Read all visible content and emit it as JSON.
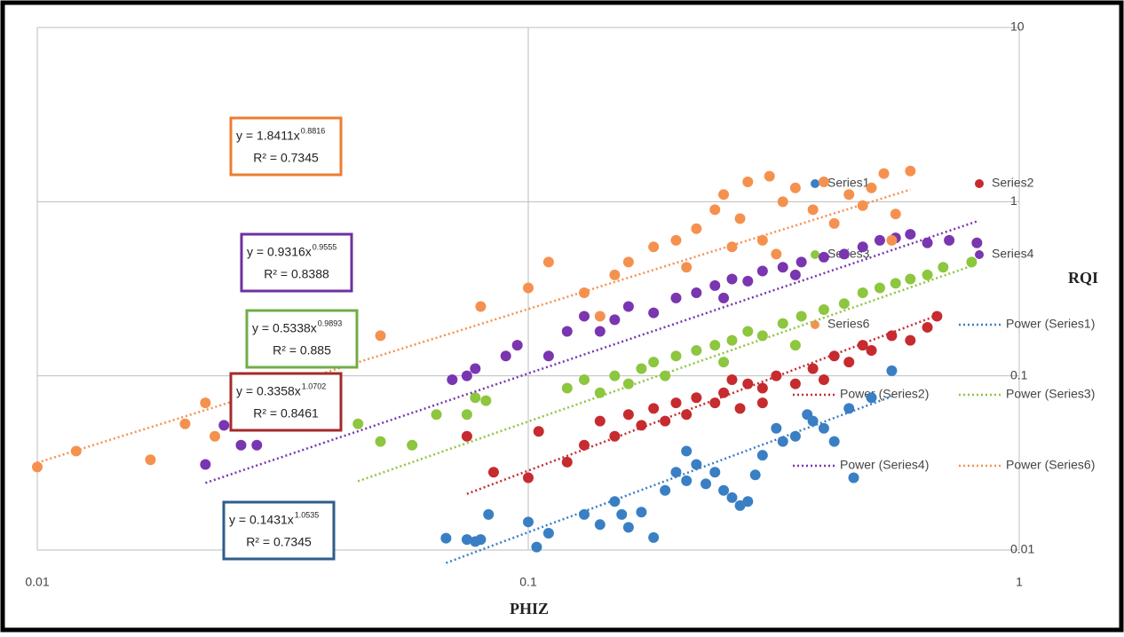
{
  "chart_data": {
    "type": "scatter",
    "x_label": "PHIZ",
    "y_label": "RQI",
    "log_x": true,
    "log_y": true,
    "grid": true,
    "xlim": [
      0.01,
      1
    ],
    "xticks": [
      0.01,
      0.1,
      1
    ],
    "ylim": [
      0.01,
      10
    ],
    "yticks": [
      0.01,
      0.1,
      1,
      10
    ],
    "series": [
      {
        "name": "Series1",
        "color": "#3a7fc4",
        "x": [
          0.068,
          0.075,
          0.078,
          0.08,
          0.083,
          0.1,
          0.104,
          0.11,
          0.13,
          0.14,
          0.15,
          0.155,
          0.16,
          0.17,
          0.18,
          0.19,
          0.2,
          0.21,
          0.22,
          0.23,
          0.25,
          0.26,
          0.27,
          0.28,
          0.29,
          0.3,
          0.32,
          0.33,
          0.35,
          0.37,
          0.4,
          0.42,
          0.45,
          0.46,
          0.5,
          0.55,
          0.21,
          0.24,
          0.38
        ],
        "values": [
          0.0117,
          0.0115,
          0.0112,
          0.0115,
          0.016,
          0.0145,
          0.0104,
          0.0125,
          0.016,
          0.014,
          0.019,
          0.016,
          0.0135,
          0.0165,
          0.0118,
          0.022,
          0.028,
          0.025,
          0.031,
          0.024,
          0.022,
          0.02,
          0.018,
          0.019,
          0.027,
          0.035,
          0.05,
          0.042,
          0.045,
          0.06,
          0.05,
          0.042,
          0.065,
          0.026,
          0.075,
          0.107,
          0.037,
          0.028,
          0.055
        ],
        "trendline": {
          "name": "Power (Series1)",
          "coefficient": 0.1431,
          "exponent": 1.0535,
          "equation_label": "y = 0.1431x",
          "r_squared_label": "R² = 0.7345",
          "box_color": "#2e5d8a"
        }
      },
      {
        "name": "Series2",
        "color": "#c62b2f",
        "x": [
          0.075,
          0.085,
          0.1,
          0.105,
          0.12,
          0.13,
          0.14,
          0.15,
          0.16,
          0.17,
          0.18,
          0.19,
          0.2,
          0.21,
          0.22,
          0.24,
          0.25,
          0.27,
          0.28,
          0.3,
          0.32,
          0.35,
          0.38,
          0.4,
          0.42,
          0.45,
          0.48,
          0.5,
          0.55,
          0.6,
          0.65,
          0.68,
          0.3,
          0.26
        ],
        "values": [
          0.045,
          0.028,
          0.026,
          0.048,
          0.032,
          0.04,
          0.055,
          0.045,
          0.06,
          0.052,
          0.065,
          0.055,
          0.07,
          0.06,
          0.075,
          0.07,
          0.08,
          0.065,
          0.09,
          0.085,
          0.1,
          0.09,
          0.11,
          0.095,
          0.13,
          0.12,
          0.15,
          0.14,
          0.17,
          0.16,
          0.19,
          0.22,
          0.07,
          0.095
        ],
        "trendline": {
          "name": "Power (Series2)",
          "coefficient": 0.3358,
          "exponent": 1.0702,
          "equation_label": "y = 0.3358x",
          "r_squared_label": "R² = 0.8461",
          "box_color": "#a52a2a"
        }
      },
      {
        "name": "Series3",
        "color": "#8dc63f",
        "x": [
          0.045,
          0.05,
          0.058,
          0.065,
          0.075,
          0.078,
          0.082,
          0.12,
          0.13,
          0.14,
          0.15,
          0.16,
          0.17,
          0.18,
          0.19,
          0.2,
          0.22,
          0.24,
          0.26,
          0.28,
          0.3,
          0.33,
          0.36,
          0.4,
          0.44,
          0.48,
          0.52,
          0.56,
          0.6,
          0.65,
          0.7,
          0.8,
          0.25,
          0.35
        ],
        "values": [
          0.053,
          0.042,
          0.04,
          0.06,
          0.06,
          0.075,
          0.072,
          0.085,
          0.095,
          0.08,
          0.1,
          0.09,
          0.11,
          0.12,
          0.1,
          0.13,
          0.14,
          0.15,
          0.16,
          0.18,
          0.17,
          0.2,
          0.22,
          0.24,
          0.26,
          0.3,
          0.32,
          0.34,
          0.36,
          0.38,
          0.42,
          0.45,
          0.12,
          0.15
        ],
        "trendline": {
          "name": "Power (Series3)",
          "coefficient": 0.5338,
          "exponent": 0.9893,
          "equation_label": "y = 0.5338x",
          "r_squared_label": "R² = 0.885",
          "box_color": "#70ad47"
        }
      },
      {
        "name": "Series4",
        "color": "#7a35b0",
        "x": [
          0.022,
          0.024,
          0.026,
          0.028,
          0.033,
          0.07,
          0.075,
          0.078,
          0.09,
          0.095,
          0.11,
          0.12,
          0.13,
          0.14,
          0.15,
          0.16,
          0.18,
          0.2,
          0.22,
          0.24,
          0.26,
          0.28,
          0.3,
          0.33,
          0.36,
          0.4,
          0.44,
          0.48,
          0.52,
          0.56,
          0.6,
          0.65,
          0.72,
          0.82,
          0.25,
          0.35
        ],
        "values": [
          0.031,
          0.052,
          0.04,
          0.04,
          0.057,
          0.095,
          0.1,
          0.11,
          0.13,
          0.15,
          0.13,
          0.18,
          0.22,
          0.18,
          0.21,
          0.25,
          0.23,
          0.28,
          0.3,
          0.33,
          0.36,
          0.35,
          0.4,
          0.42,
          0.45,
          0.48,
          0.5,
          0.55,
          0.6,
          0.62,
          0.65,
          0.58,
          0.6,
          0.58,
          0.28,
          0.38
        ],
        "trendline": {
          "name": "Power (Series4)",
          "coefficient": 0.9316,
          "exponent": 0.9555,
          "equation_label": "y = 0.9316x",
          "r_squared_label": "R² = 0.8388",
          "box_color": "#7030a0"
        }
      },
      {
        "name": "Series6",
        "color": "#f5914f",
        "x": [
          0.01,
          0.012,
          0.017,
          0.02,
          0.022,
          0.023,
          0.05,
          0.08,
          0.1,
          0.11,
          0.13,
          0.14,
          0.15,
          0.16,
          0.18,
          0.2,
          0.21,
          0.22,
          0.24,
          0.25,
          0.27,
          0.28,
          0.3,
          0.31,
          0.33,
          0.35,
          0.38,
          0.4,
          0.42,
          0.45,
          0.48,
          0.5,
          0.53,
          0.56,
          0.6,
          0.55,
          0.32,
          0.26
        ],
        "values": [
          0.03,
          0.037,
          0.033,
          0.053,
          0.07,
          0.045,
          0.17,
          0.25,
          0.32,
          0.45,
          0.3,
          0.22,
          0.38,
          0.45,
          0.55,
          0.6,
          0.42,
          0.7,
          0.9,
          1.1,
          0.8,
          1.3,
          0.6,
          1.4,
          1.0,
          1.2,
          0.9,
          1.3,
          0.75,
          1.1,
          0.95,
          1.2,
          1.45,
          0.85,
          1.5,
          0.6,
          0.5,
          0.55
        ],
        "trendline": {
          "name": "Power (Series6)",
          "coefficient": 1.8411,
          "exponent": 0.8816,
          "equation_label": "y = 1.8411x",
          "r_squared_label": "R² = 0.7345",
          "box_color": "#ed7d31"
        }
      }
    ]
  }
}
